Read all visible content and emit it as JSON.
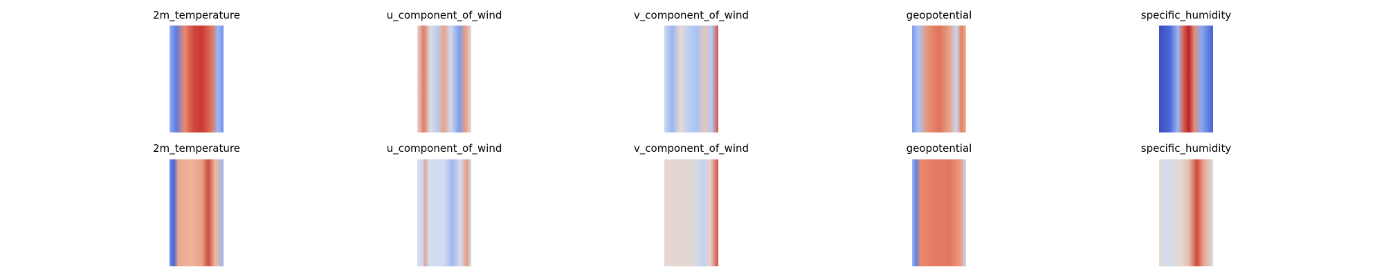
{
  "rows": [
    {
      "panels": [
        {
          "title": "2m_temperature"
        },
        {
          "title": "u_component_of_wind"
        },
        {
          "title": "v_component_of_wind"
        },
        {
          "title": "geopotential"
        },
        {
          "title": "specific_humidity"
        }
      ]
    },
    {
      "panels": [
        {
          "title": "2m_temperature"
        },
        {
          "title": "u_component_of_wind"
        },
        {
          "title": "v_component_of_wind"
        },
        {
          "title": "geopotential"
        },
        {
          "title": "specific_humidity"
        }
      ]
    }
  ]
}
